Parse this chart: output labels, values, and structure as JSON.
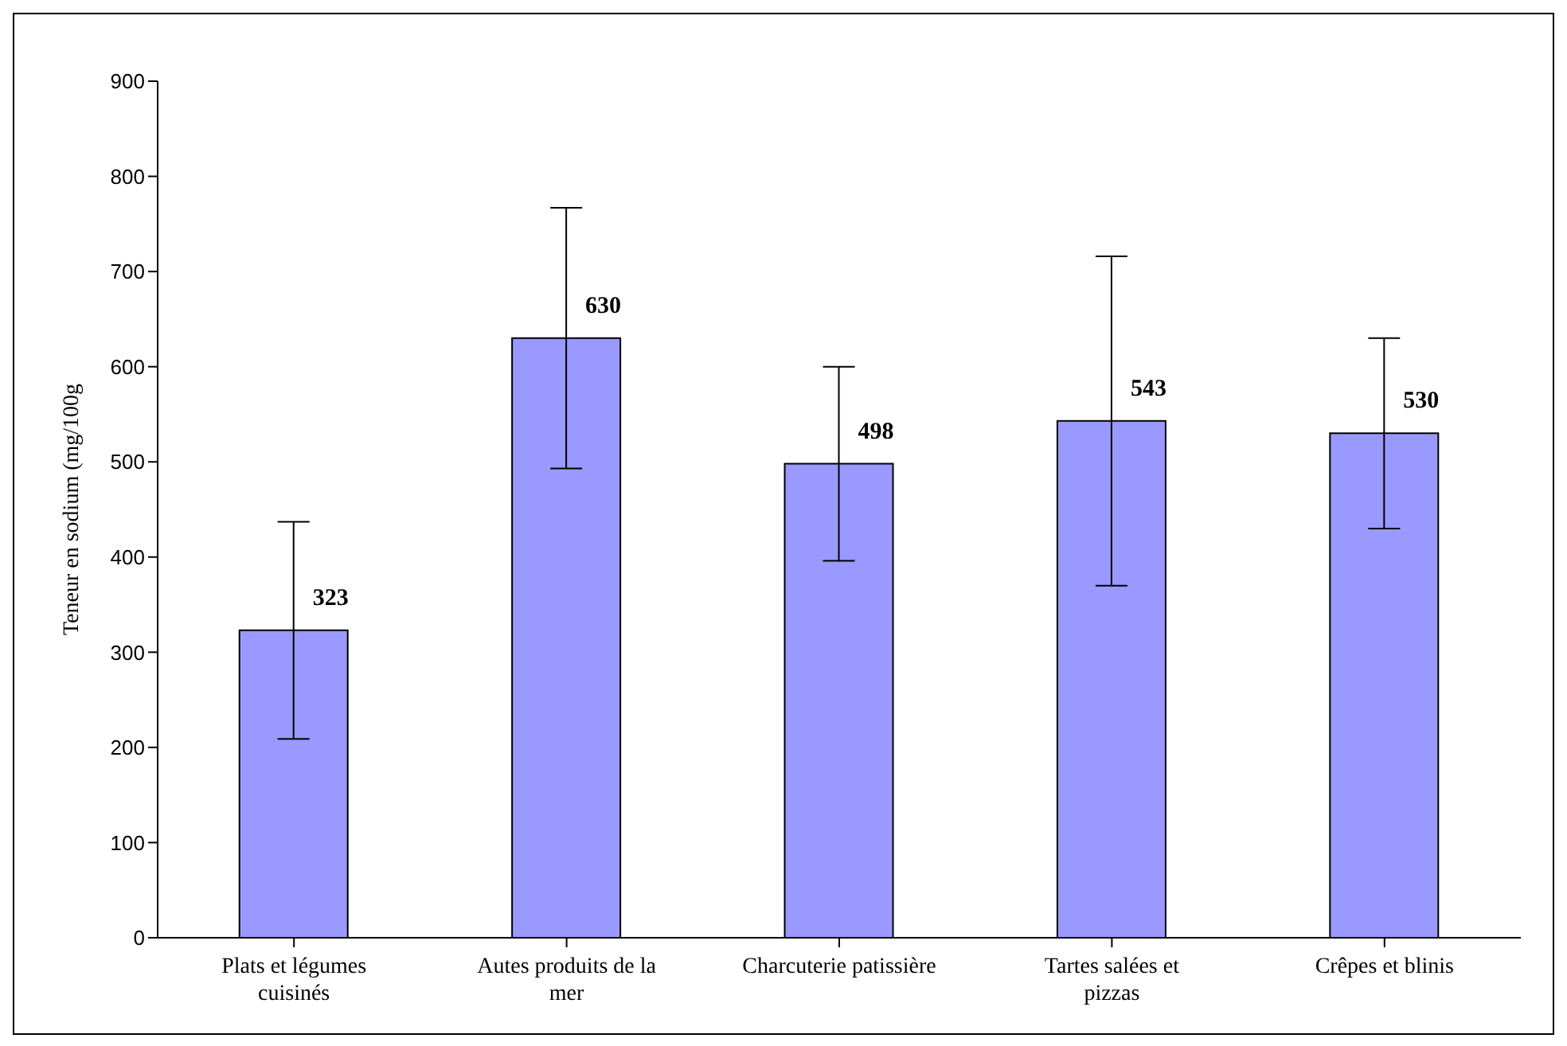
{
  "chart_data": {
    "type": "bar",
    "ylabel": "Teneur en sodium (mg/100g",
    "categories": [
      "Plats et légumes cuisinés",
      "Autes produits de la mer",
      "Charcuterie patissière",
      "Tartes salées et pizzas",
      "Crêpes et blinis"
    ],
    "values": [
      323,
      630,
      498,
      543,
      530
    ],
    "errors": [
      114,
      137,
      102,
      173,
      100
    ],
    "color": "#9999ff",
    "data_labels": true,
    "ylim": [
      0,
      900
    ],
    "yticks": [
      0,
      100,
      200,
      300,
      400,
      500,
      600,
      700,
      800,
      900
    ],
    "grid": false
  }
}
